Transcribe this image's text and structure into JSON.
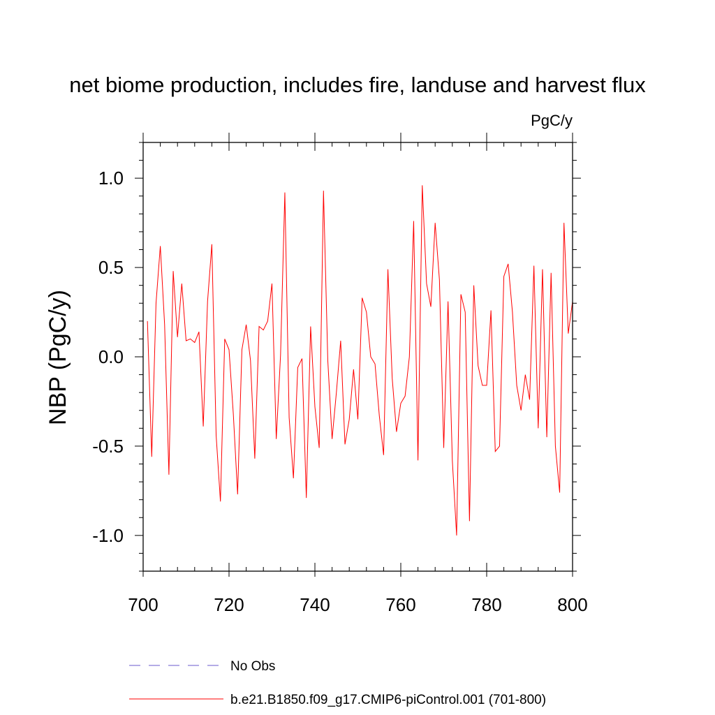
{
  "chart_data": {
    "type": "line",
    "title": "net biome production, includes fire, landuse and harvest flux",
    "units": "PgC/y",
    "xlabel": "",
    "ylabel": "NBP  (PgC/y)",
    "xlim": [
      700,
      800
    ],
    "ylim": [
      -1.2,
      1.2
    ],
    "x_ticks": [
      700,
      720,
      740,
      760,
      780,
      800
    ],
    "x_tick_labels": [
      "700",
      "720",
      "740",
      "760",
      "780",
      "800"
    ],
    "y_ticks": [
      -1.0,
      -0.5,
      0.0,
      0.5,
      1.0
    ],
    "y_tick_labels": [
      "-1.0",
      "-0.5",
      "0.0",
      "0.5",
      "1.0"
    ],
    "grid": false,
    "legend_placement": "bottom",
    "series": [
      {
        "name": "b.e21.B1850.f09_g17.CMIP6-piControl.001 (701-800)",
        "color": "#ff0000",
        "style": "solid",
        "x": [
          701,
          702,
          703,
          704,
          705,
          706,
          707,
          708,
          709,
          710,
          711,
          712,
          713,
          714,
          715,
          716,
          717,
          718,
          719,
          720,
          721,
          722,
          723,
          724,
          725,
          726,
          727,
          728,
          729,
          730,
          731,
          732,
          733,
          734,
          735,
          736,
          737,
          738,
          739,
          740,
          741,
          742,
          743,
          744,
          745,
          746,
          747,
          748,
          749,
          750,
          751,
          752,
          753,
          754,
          755,
          756,
          757,
          758,
          759,
          760,
          761,
          762,
          763,
          764,
          765,
          766,
          767,
          768,
          769,
          770,
          771,
          772,
          773,
          774,
          775,
          776,
          777,
          778,
          779,
          780,
          781,
          782,
          783,
          784,
          785,
          786,
          787,
          788,
          789,
          790,
          791,
          792,
          793,
          794,
          795,
          796,
          797,
          798,
          799,
          800
        ],
        "values": [
          0.2,
          -0.56,
          0.3,
          0.62,
          0.18,
          -0.66,
          0.48,
          0.11,
          0.41,
          0.09,
          0.1,
          0.08,
          0.14,
          -0.39,
          0.31,
          0.63,
          -0.44,
          -0.81,
          0.1,
          0.04,
          -0.32,
          -0.77,
          0.04,
          0.18,
          -0.02,
          -0.57,
          0.17,
          0.15,
          0.2,
          0.41,
          -0.46,
          0.01,
          0.92,
          -0.34,
          -0.68,
          -0.06,
          -0.01,
          -0.79,
          0.17,
          -0.28,
          -0.51,
          0.93,
          -0.02,
          -0.46,
          -0.2,
          0.09,
          -0.49,
          -0.35,
          -0.07,
          -0.35,
          0.33,
          0.25,
          0.0,
          -0.04,
          -0.33,
          -0.55,
          0.49,
          -0.12,
          -0.42,
          -0.26,
          -0.22,
          0.0,
          0.76,
          -0.58,
          0.96,
          0.41,
          0.28,
          0.75,
          0.43,
          -0.51,
          0.31,
          -0.58,
          -1.0,
          0.35,
          0.25,
          -0.92,
          0.4,
          -0.05,
          -0.16,
          -0.16,
          0.26,
          -0.53,
          -0.5,
          0.45,
          0.52,
          0.25,
          -0.16,
          -0.3,
          -0.1,
          -0.24,
          0.51,
          -0.4,
          0.49,
          -0.45,
          0.47,
          -0.5,
          -0.76,
          0.75,
          0.13,
          0.31
        ]
      },
      {
        "name": "No Obs",
        "color": "#6a5acd",
        "style": "dashed",
        "x": [],
        "values": []
      }
    ]
  }
}
